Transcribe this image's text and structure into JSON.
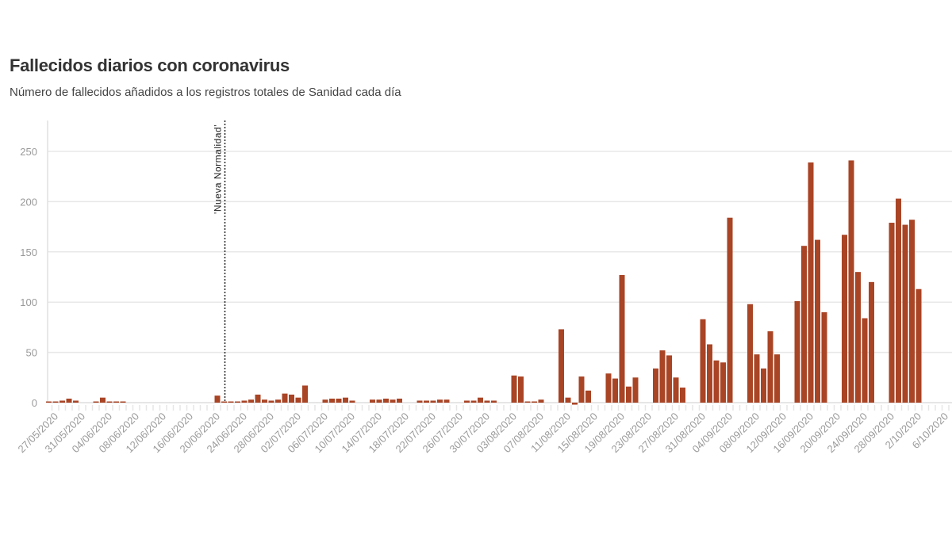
{
  "chart_data": {
    "type": "bar",
    "title": "Fallecidos diarios con coronavirus",
    "subtitle": "Número de fallecidos añadidos a los registros totales de Sanidad cada día",
    "xlabel": "",
    "ylabel": "",
    "ylim": [
      0,
      280
    ],
    "yticks": [
      0,
      50,
      100,
      150,
      200,
      250
    ],
    "grid": true,
    "bar_color": "#a94425",
    "start_date": "2020-05-26",
    "end_date": "2020-10-06",
    "xtick_labels": [
      "27/05/2020",
      "31/05/2020",
      "04/06/2020",
      "08/06/2020",
      "12/06/2020",
      "16/06/2020",
      "20/06/2020",
      "24/06/2020",
      "28/06/2020",
      "02/07/2020",
      "06/07/2020",
      "10/07/2020",
      "14/07/2020",
      "18/07/2020",
      "22/07/2020",
      "26/07/2020",
      "30/07/2020",
      "03/08/2020",
      "07/08/2020",
      "11/08/2020",
      "15/08/2020",
      "19/08/2020",
      "23/08/2020",
      "27/08/2020",
      "31/08/2020",
      "04/09/2020",
      "08/09/2020",
      "12/09/2020",
      "16/09/2020",
      "20/09/2020",
      "24/09/2020",
      "28/09/2020",
      "2/10/2020",
      "6/10/2020"
    ],
    "annotation": {
      "label": "'Nueva Normalidad'",
      "date": "2020-06-21"
    },
    "data": [
      {
        "date": "26/05/2020",
        "value": 1
      },
      {
        "date": "27/05/2020",
        "value": 1
      },
      {
        "date": "28/05/2020",
        "value": 2
      },
      {
        "date": "29/05/2020",
        "value": 4
      },
      {
        "date": "30/05/2020",
        "value": 2
      },
      {
        "date": "02/06/2020",
        "value": 1
      },
      {
        "date": "03/06/2020",
        "value": 5
      },
      {
        "date": "04/06/2020",
        "value": 1
      },
      {
        "date": "05/06/2020",
        "value": 1
      },
      {
        "date": "06/06/2020",
        "value": 1
      },
      {
        "date": "20/06/2020",
        "value": 7
      },
      {
        "date": "21/06/2020",
        "value": 1
      },
      {
        "date": "22/06/2020",
        "value": 1
      },
      {
        "date": "23/06/2020",
        "value": 1
      },
      {
        "date": "24/06/2020",
        "value": 2
      },
      {
        "date": "25/06/2020",
        "value": 3
      },
      {
        "date": "26/06/2020",
        "value": 8
      },
      {
        "date": "27/06/2020",
        "value": 3
      },
      {
        "date": "28/06/2020",
        "value": 2
      },
      {
        "date": "29/06/2020",
        "value": 3
      },
      {
        "date": "30/06/2020",
        "value": 9
      },
      {
        "date": "01/07/2020",
        "value": 8
      },
      {
        "date": "02/07/2020",
        "value": 5
      },
      {
        "date": "03/07/2020",
        "value": 17
      },
      {
        "date": "06/07/2020",
        "value": 3
      },
      {
        "date": "07/07/2020",
        "value": 4
      },
      {
        "date": "08/07/2020",
        "value": 4
      },
      {
        "date": "09/07/2020",
        "value": 5
      },
      {
        "date": "10/07/2020",
        "value": 2
      },
      {
        "date": "13/07/2020",
        "value": 3
      },
      {
        "date": "14/07/2020",
        "value": 3
      },
      {
        "date": "15/07/2020",
        "value": 4
      },
      {
        "date": "16/07/2020",
        "value": 3
      },
      {
        "date": "17/07/2020",
        "value": 4
      },
      {
        "date": "20/07/2020",
        "value": 2
      },
      {
        "date": "21/07/2020",
        "value": 2
      },
      {
        "date": "22/07/2020",
        "value": 2
      },
      {
        "date": "23/07/2020",
        "value": 3
      },
      {
        "date": "24/07/2020",
        "value": 3
      },
      {
        "date": "27/07/2020",
        "value": 2
      },
      {
        "date": "28/07/2020",
        "value": 2
      },
      {
        "date": "29/07/2020",
        "value": 5
      },
      {
        "date": "30/07/2020",
        "value": 2
      },
      {
        "date": "31/07/2020",
        "value": 2
      },
      {
        "date": "03/08/2020",
        "value": 27
      },
      {
        "date": "04/08/2020",
        "value": 26
      },
      {
        "date": "05/08/2020",
        "value": 1
      },
      {
        "date": "06/08/2020",
        "value": 1
      },
      {
        "date": "07/08/2020",
        "value": 3
      },
      {
        "date": "10/08/2020",
        "value": 73
      },
      {
        "date": "11/08/2020",
        "value": 5
      },
      {
        "date": "12/08/2020",
        "value": -2
      },
      {
        "date": "13/08/2020",
        "value": 26
      },
      {
        "date": "14/08/2020",
        "value": 12
      },
      {
        "date": "17/08/2020",
        "value": 29
      },
      {
        "date": "18/08/2020",
        "value": 24
      },
      {
        "date": "19/08/2020",
        "value": 127
      },
      {
        "date": "20/08/2020",
        "value": 16
      },
      {
        "date": "21/08/2020",
        "value": 25
      },
      {
        "date": "24/08/2020",
        "value": 34
      },
      {
        "date": "25/08/2020",
        "value": 52
      },
      {
        "date": "26/08/2020",
        "value": 47
      },
      {
        "date": "27/08/2020",
        "value": 25
      },
      {
        "date": "28/08/2020",
        "value": 15
      },
      {
        "date": "31/08/2020",
        "value": 83
      },
      {
        "date": "01/09/2020",
        "value": 58
      },
      {
        "date": "02/09/2020",
        "value": 42
      },
      {
        "date": "03/09/2020",
        "value": 40
      },
      {
        "date": "04/09/2020",
        "value": 184
      },
      {
        "date": "07/09/2020",
        "value": 98
      },
      {
        "date": "08/09/2020",
        "value": 48
      },
      {
        "date": "09/09/2020",
        "value": 34
      },
      {
        "date": "10/09/2020",
        "value": 71
      },
      {
        "date": "11/09/2020",
        "value": 48
      },
      {
        "date": "14/09/2020",
        "value": 101
      },
      {
        "date": "15/09/2020",
        "value": 156
      },
      {
        "date": "16/09/2020",
        "value": 239
      },
      {
        "date": "17/09/2020",
        "value": 162
      },
      {
        "date": "18/09/2020",
        "value": 90
      },
      {
        "date": "21/09/2020",
        "value": 167
      },
      {
        "date": "22/09/2020",
        "value": 241
      },
      {
        "date": "23/09/2020",
        "value": 130
      },
      {
        "date": "24/09/2020",
        "value": 84
      },
      {
        "date": "25/09/2020",
        "value": 120
      },
      {
        "date": "28/09/2020",
        "value": 179
      },
      {
        "date": "29/09/2020",
        "value": 203
      },
      {
        "date": "30/09/2020",
        "value": 177
      },
      {
        "date": "01/10/2020",
        "value": 182
      },
      {
        "date": "02/10/2020",
        "value": 113
      }
    ]
  }
}
